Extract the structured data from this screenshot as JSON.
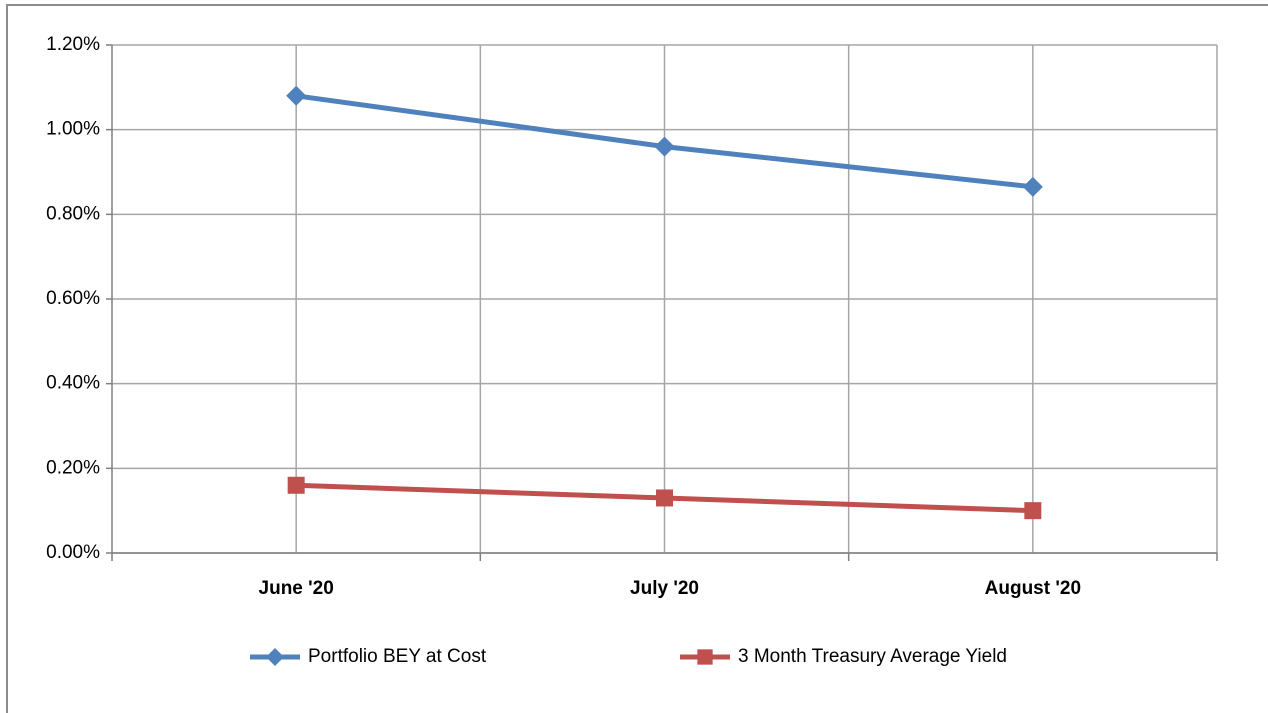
{
  "chart_data": {
    "type": "line",
    "categories": [
      "June '20",
      "July '20",
      "August '20"
    ],
    "series": [
      {
        "name": "Portfolio BEY at Cost",
        "color": "#4f81bd",
        "marker": "diamond",
        "values": [
          1.08,
          0.96,
          0.865
        ]
      },
      {
        "name": "3 Month Treasury Average Yield",
        "color": "#c0504d",
        "marker": "square",
        "values": [
          0.16,
          0.13,
          0.1
        ]
      }
    ],
    "ylim": [
      0,
      1.2
    ],
    "yticks": [
      {
        "value": 0,
        "label": "0.00%"
      },
      {
        "value": 0.2,
        "label": "0.20%"
      },
      {
        "value": 0.4,
        "label": "0.40%"
      },
      {
        "value": 0.6,
        "label": "0.60%"
      },
      {
        "value": 0.8,
        "label": "0.80%"
      },
      {
        "value": 1.0,
        "label": "1.00%"
      },
      {
        "value": 1.2,
        "label": "1.20%"
      }
    ],
    "grid": true,
    "legend": "bottom"
  }
}
